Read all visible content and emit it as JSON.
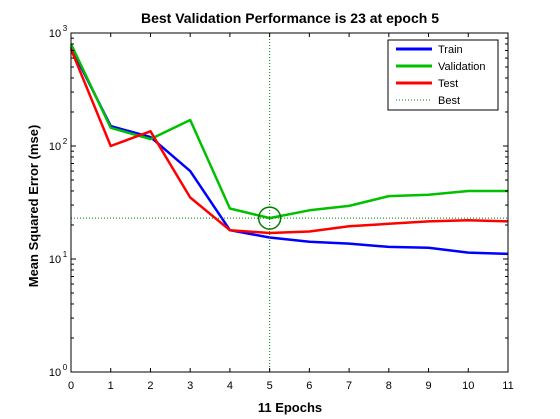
{
  "chart_data": {
    "type": "line",
    "title": "Best Validation Performance is 23 at epoch 5",
    "xlabel": "11 Epochs",
    "ylabel": "Mean Squared Error  (mse)",
    "xlim": [
      0,
      11
    ],
    "ylim": [
      1,
      1000
    ],
    "yscale": "log",
    "x_ticks": [
      "0",
      "1",
      "2",
      "3",
      "4",
      "5",
      "6",
      "7",
      "8",
      "9",
      "10",
      "11"
    ],
    "y_ticks": [
      {
        "base": "10",
        "exp": "0"
      },
      {
        "base": "10",
        "exp": "1"
      },
      {
        "base": "10",
        "exp": "2"
      },
      {
        "base": "10",
        "exp": "3"
      }
    ],
    "x": [
      0,
      1,
      2,
      3,
      4,
      5,
      6,
      7,
      8,
      9,
      10,
      11
    ],
    "series": [
      {
        "name": "Train",
        "color": "#0000ff",
        "style": "solid",
        "values": [
          750,
          150,
          120,
          60,
          18,
          15.5,
          14.2,
          13.7,
          12.8,
          12.6,
          11.4,
          11.1
        ]
      },
      {
        "name": "Validation",
        "color": "#00c000",
        "style": "solid",
        "values": [
          800,
          145,
          115,
          170,
          28,
          23,
          27,
          29.5,
          36,
          37,
          40,
          40
        ]
      },
      {
        "name": "Test",
        "color": "#ff0000",
        "style": "solid",
        "values": [
          720,
          100,
          135,
          35,
          18,
          17,
          17.5,
          19.5,
          20.5,
          21.5,
          22,
          21.5
        ]
      }
    ],
    "best": {
      "name": "Best",
      "epoch": 5,
      "value": 23,
      "color": "#008000",
      "style": "dotted"
    },
    "legend_position": "top-right",
    "grid": false
  }
}
